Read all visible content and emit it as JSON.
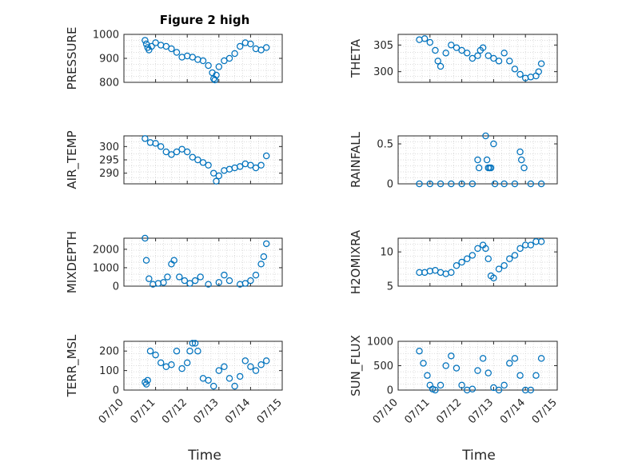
{
  "chart_data": [
    {
      "type": "scatter",
      "panel": "pressure",
      "ylabel": "PRESSURE",
      "title": "Figure 2 high",
      "ylim": [
        800,
        1000
      ],
      "yticks": [
        800,
        900,
        1000
      ],
      "xlim": [
        "2020-07-10",
        "2020-07-15"
      ],
      "x": [
        "2020-07-10T16:00",
        "2020-07-10T17:00",
        "2020-07-10T18:00",
        "2020-07-10T19:00",
        "2020-07-10T21:00",
        "2020-07-11T00:00",
        "2020-07-11T04:00",
        "2020-07-11T08:00",
        "2020-07-11T12:00",
        "2020-07-11T16:00",
        "2020-07-11T20:00",
        "2020-07-12T00:00",
        "2020-07-12T04:00",
        "2020-07-12T08:00",
        "2020-07-12T12:00",
        "2020-07-12T16:00",
        "2020-07-12T19:00",
        "2020-07-12T20:00",
        "2020-07-12T21:00",
        "2020-07-12T22:00",
        "2020-07-13T00:00",
        "2020-07-13T04:00",
        "2020-07-13T08:00",
        "2020-07-13T12:00",
        "2020-07-13T16:00",
        "2020-07-13T20:00",
        "2020-07-14T00:00",
        "2020-07-14T04:00",
        "2020-07-14T08:00",
        "2020-07-14T12:00"
      ],
      "y": [
        975,
        960,
        945,
        935,
        950,
        965,
        955,
        950,
        940,
        925,
        905,
        910,
        905,
        895,
        890,
        870,
        840,
        815,
        810,
        830,
        865,
        890,
        900,
        920,
        950,
        965,
        960,
        940,
        935,
        945
      ]
    },
    {
      "type": "scatter",
      "panel": "theta",
      "ylabel": "THETA",
      "ylim": [
        298,
        307
      ],
      "yticks": [
        300,
        305
      ],
      "x": [
        "2020-07-10T16:00",
        "2020-07-10T20:00",
        "2020-07-11T00:00",
        "2020-07-11T04:00",
        "2020-07-11T06:00",
        "2020-07-11T08:00",
        "2020-07-11T12:00",
        "2020-07-11T16:00",
        "2020-07-11T20:00",
        "2020-07-12T00:00",
        "2020-07-12T04:00",
        "2020-07-12T08:00",
        "2020-07-12T12:00",
        "2020-07-12T14:00",
        "2020-07-12T16:00",
        "2020-07-12T20:00",
        "2020-07-13T00:00",
        "2020-07-13T04:00",
        "2020-07-13T08:00",
        "2020-07-13T12:00",
        "2020-07-13T16:00",
        "2020-07-13T20:00",
        "2020-07-14T00:00",
        "2020-07-14T04:00",
        "2020-07-14T08:00",
        "2020-07-14T10:00",
        "2020-07-14T12:00"
      ],
      "y": [
        306,
        306.2,
        305.5,
        304,
        302,
        301,
        303.5,
        305,
        304.5,
        304,
        303.5,
        302.5,
        303,
        304,
        304.5,
        303,
        302.5,
        302,
        303.5,
        302,
        300.5,
        299.5,
        298.8,
        299,
        299.2,
        300,
        301.5
      ]
    },
    {
      "type": "scatter",
      "panel": "air_temp",
      "ylabel": "AIR_TEMP",
      "ylim": [
        286,
        304
      ],
      "yticks": [
        290,
        295,
        300
      ],
      "x": [
        "2020-07-10T16:00",
        "2020-07-10T20:00",
        "2020-07-11T00:00",
        "2020-07-11T04:00",
        "2020-07-11T08:00",
        "2020-07-11T12:00",
        "2020-07-11T16:00",
        "2020-07-11T20:00",
        "2020-07-12T00:00",
        "2020-07-12T04:00",
        "2020-07-12T08:00",
        "2020-07-12T12:00",
        "2020-07-12T16:00",
        "2020-07-12T20:00",
        "2020-07-12T22:00",
        "2020-07-13T00:00",
        "2020-07-13T04:00",
        "2020-07-13T08:00",
        "2020-07-13T12:00",
        "2020-07-13T16:00",
        "2020-07-13T20:00",
        "2020-07-14T00:00",
        "2020-07-14T04:00",
        "2020-07-14T08:00",
        "2020-07-14T12:00"
      ],
      "y": [
        303,
        301.5,
        301.2,
        300,
        298,
        297,
        298,
        299,
        298,
        296,
        295,
        294,
        293,
        290,
        287,
        289,
        291,
        291.5,
        292,
        292.5,
        293.5,
        293,
        292,
        293,
        296.5
      ]
    },
    {
      "type": "scatter",
      "panel": "rainfall",
      "ylabel": "RAINFALL",
      "ylim": [
        0,
        0.6
      ],
      "yticks": [
        0,
        0.5
      ],
      "x": [
        "2020-07-10T16:00",
        "2020-07-11T00:00",
        "2020-07-11T08:00",
        "2020-07-11T16:00",
        "2020-07-12T00:00",
        "2020-07-12T08:00",
        "2020-07-12T12:00",
        "2020-07-12T13:00",
        "2020-07-12T18:00",
        "2020-07-12T19:00",
        "2020-07-12T20:00",
        "2020-07-12T21:00",
        "2020-07-12T22:00",
        "2020-07-13T00:00",
        "2020-07-13T01:00",
        "2020-07-13T08:00",
        "2020-07-13T16:00",
        "2020-07-13T20:00",
        "2020-07-13T21:00",
        "2020-07-13T23:00",
        "2020-07-14T04:00",
        "2020-07-14T12:00"
      ],
      "y": [
        0,
        0,
        0,
        0,
        0,
        0,
        0.3,
        0.2,
        0.6,
        0.3,
        0.2,
        0.2,
        0.2,
        0.5,
        0,
        0,
        0,
        0.4,
        0.3,
        0.2,
        0,
        0
      ]
    },
    {
      "type": "scatter",
      "panel": "mixdepth",
      "ylabel": "MIXDEPTH",
      "ylim": [
        0,
        2600
      ],
      "yticks": [
        0,
        1000,
        2000
      ],
      "x": [
        "2020-07-10T16:00",
        "2020-07-10T17:00",
        "2020-07-10T19:00",
        "2020-07-10T22:00",
        "2020-07-11T02:00",
        "2020-07-11T06:00",
        "2020-07-11T09:00",
        "2020-07-11T12:00",
        "2020-07-11T14:00",
        "2020-07-11T18:00",
        "2020-07-11T22:00",
        "2020-07-12T02:00",
        "2020-07-12T06:00",
        "2020-07-12T10:00",
        "2020-07-12T16:00",
        "2020-07-13T00:00",
        "2020-07-13T04:00",
        "2020-07-13T08:00",
        "2020-07-13T16:00",
        "2020-07-13T20:00",
        "2020-07-14T00:00",
        "2020-07-14T04:00",
        "2020-07-14T08:00",
        "2020-07-14T10:00",
        "2020-07-14T12:00"
      ],
      "y": [
        2600,
        1400,
        400,
        100,
        150,
        200,
        500,
        1200,
        1400,
        500,
        300,
        150,
        300,
        500,
        100,
        200,
        600,
        300,
        100,
        150,
        300,
        600,
        1200,
        1600,
        2300
      ]
    },
    {
      "type": "scatter",
      "panel": "h2omixra",
      "ylabel": "H2OMIXRA",
      "ylim": [
        5,
        12
      ],
      "yticks": [
        5,
        10
      ],
      "x": [
        "2020-07-10T16:00",
        "2020-07-10T20:00",
        "2020-07-11T00:00",
        "2020-07-11T04:00",
        "2020-07-11T08:00",
        "2020-07-11T12:00",
        "2020-07-11T16:00",
        "2020-07-11T20:00",
        "2020-07-12T00:00",
        "2020-07-12T04:00",
        "2020-07-12T08:00",
        "2020-07-12T12:00",
        "2020-07-12T16:00",
        "2020-07-12T18:00",
        "2020-07-12T20:00",
        "2020-07-12T22:00",
        "2020-07-13T00:00",
        "2020-07-13T04:00",
        "2020-07-13T08:00",
        "2020-07-13T12:00",
        "2020-07-13T16:00",
        "2020-07-13T20:00",
        "2020-07-14T00:00",
        "2020-07-14T04:00",
        "2020-07-14T08:00",
        "2020-07-14T12:00"
      ],
      "y": [
        7,
        7,
        7.2,
        7.3,
        7,
        6.8,
        7,
        8,
        8.5,
        9,
        9.5,
        10.5,
        11,
        10.5,
        9,
        6.5,
        6.2,
        7.5,
        8,
        9,
        9.5,
        10.5,
        11,
        11,
        11.5,
        11.5
      ]
    },
    {
      "type": "scatter",
      "panel": "terr_msl",
      "ylabel": "TERR_MSL",
      "ylim": [
        0,
        250
      ],
      "yticks": [
        0,
        100,
        200
      ],
      "x": [
        "2020-07-10T16:00",
        "2020-07-10T17:00",
        "2020-07-10T18:00",
        "2020-07-10T20:00",
        "2020-07-11T00:00",
        "2020-07-11T04:00",
        "2020-07-11T08:00",
        "2020-07-11T12:00",
        "2020-07-11T16:00",
        "2020-07-11T20:00",
        "2020-07-12T00:00",
        "2020-07-12T02:00",
        "2020-07-12T04:00",
        "2020-07-12T06:00",
        "2020-07-12T08:00",
        "2020-07-12T12:00",
        "2020-07-12T16:00",
        "2020-07-12T20:00",
        "2020-07-13T00:00",
        "2020-07-13T04:00",
        "2020-07-13T08:00",
        "2020-07-13T12:00",
        "2020-07-13T16:00",
        "2020-07-13T20:00",
        "2020-07-14T00:00",
        "2020-07-14T04:00",
        "2020-07-14T08:00",
        "2020-07-14T12:00"
      ],
      "y": [
        40,
        30,
        50,
        200,
        180,
        140,
        120,
        130,
        200,
        110,
        140,
        200,
        240,
        240,
        200,
        60,
        50,
        20,
        100,
        120,
        60,
        20,
        70,
        150,
        120,
        100,
        130,
        150
      ]
    },
    {
      "type": "scatter",
      "panel": "sun_flux",
      "ylabel": "SUN_FLUX",
      "ylim": [
        0,
        1000
      ],
      "yticks": [
        0,
        500,
        1000
      ],
      "x": [
        "2020-07-10T16:00",
        "2020-07-10T19:00",
        "2020-07-10T22:00",
        "2020-07-11T00:00",
        "2020-07-11T02:00",
        "2020-07-11T04:00",
        "2020-07-11T08:00",
        "2020-07-11T12:00",
        "2020-07-11T16:00",
        "2020-07-11T20:00",
        "2020-07-12T00:00",
        "2020-07-12T04:00",
        "2020-07-12T08:00",
        "2020-07-12T12:00",
        "2020-07-12T16:00",
        "2020-07-12T20:00",
        "2020-07-13T00:00",
        "2020-07-13T04:00",
        "2020-07-13T08:00",
        "2020-07-13T12:00",
        "2020-07-13T16:00",
        "2020-07-13T20:00",
        "2020-07-14T00:00",
        "2020-07-14T04:00",
        "2020-07-14T08:00",
        "2020-07-14T12:00"
      ],
      "y": [
        800,
        550,
        300,
        100,
        20,
        0,
        100,
        500,
        700,
        450,
        100,
        0,
        20,
        400,
        650,
        350,
        50,
        0,
        100,
        550,
        650,
        300,
        0,
        0,
        300,
        650
      ]
    }
  ],
  "axes": {
    "x_ticks": [
      "07/10",
      "07/11",
      "07/12",
      "07/13",
      "07/14",
      "07/15"
    ],
    "x_label": "Time"
  },
  "colors": {
    "marker": "#0072BD",
    "axis": "#262626",
    "grid": "#d0d0d0"
  }
}
